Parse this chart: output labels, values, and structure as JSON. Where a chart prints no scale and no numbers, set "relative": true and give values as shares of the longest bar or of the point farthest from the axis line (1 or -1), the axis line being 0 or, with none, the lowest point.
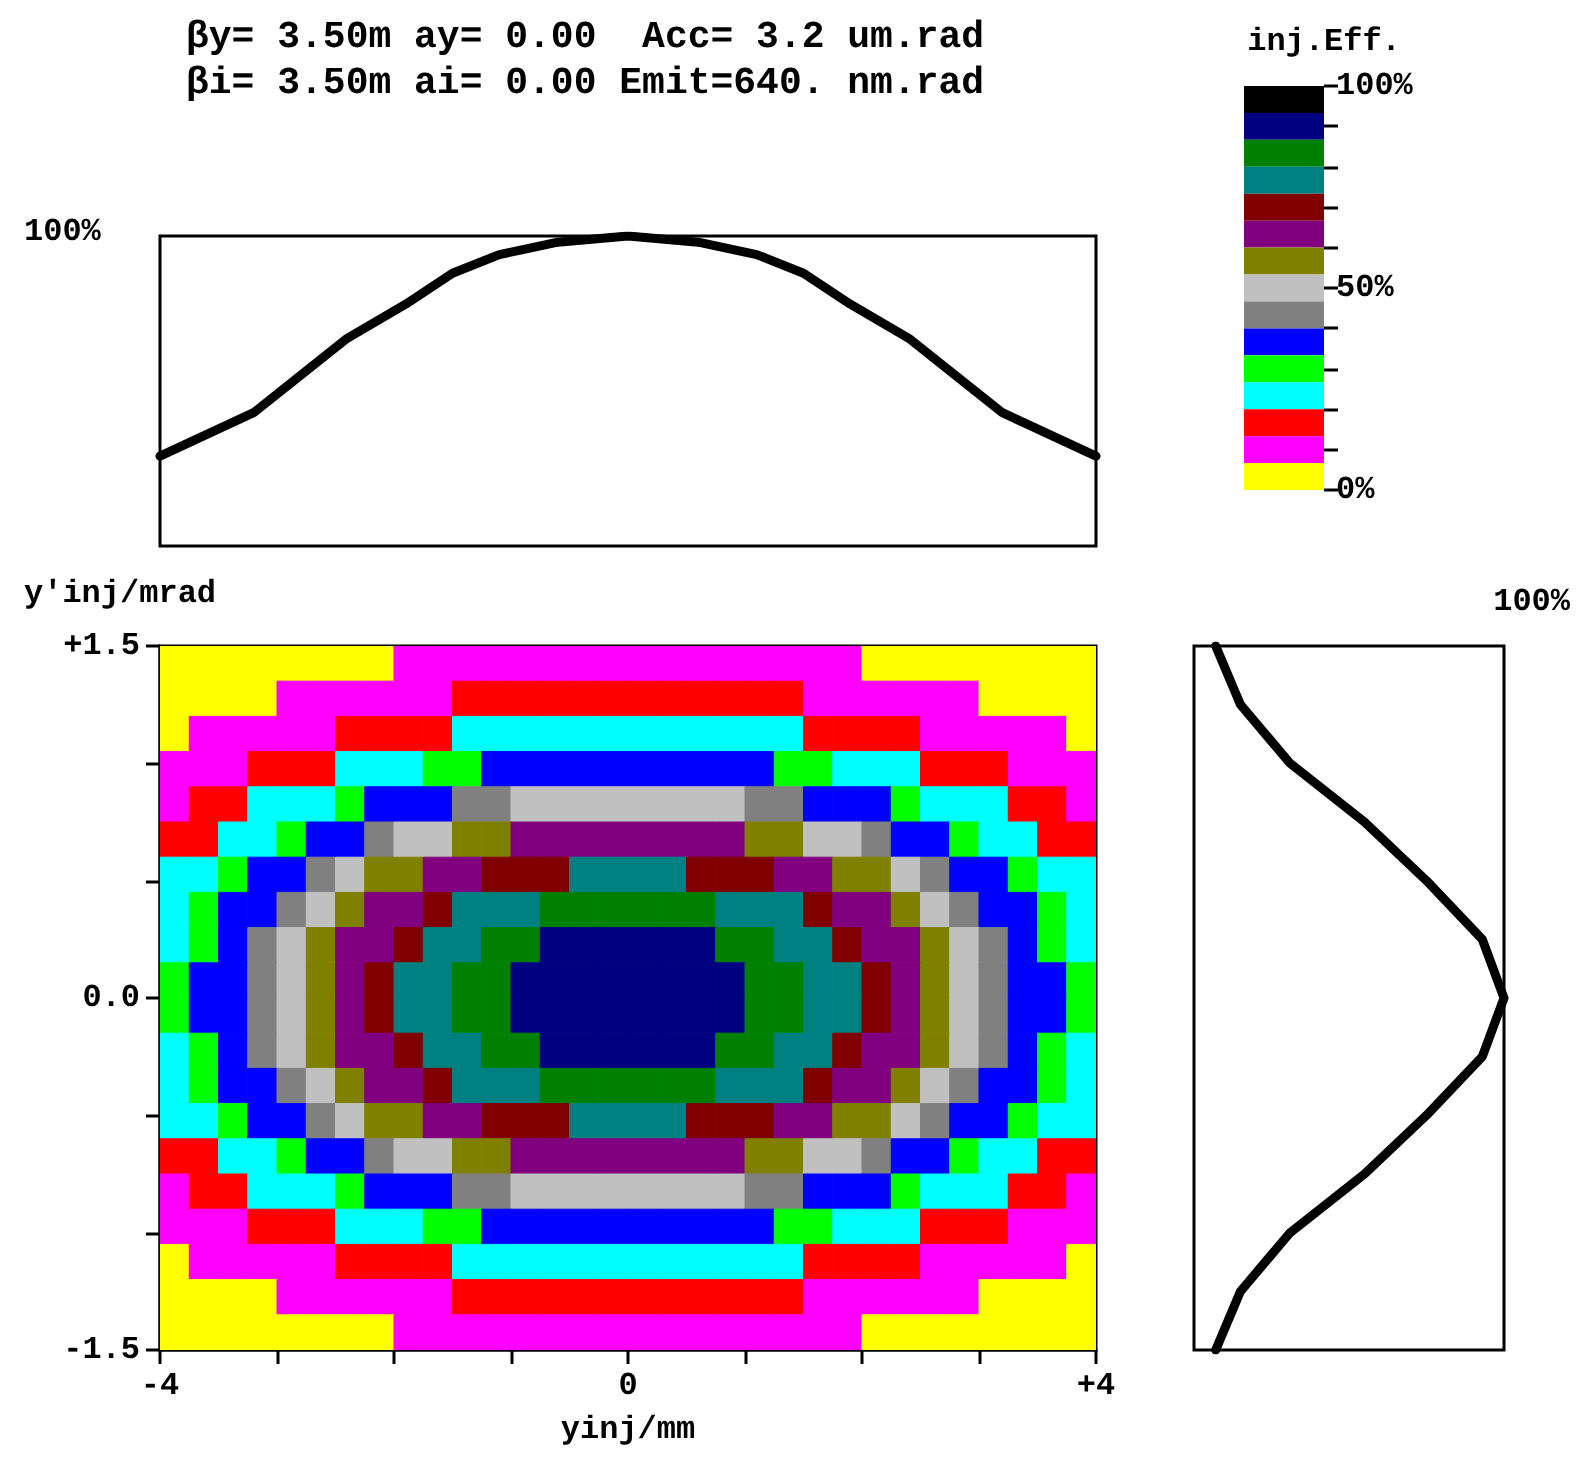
{
  "chart_data": [
    {
      "type": "line",
      "title": "βy= 3.50m ay= 0.00  Acc= 3.2 um.rad",
      "subtitle": "βi= 3.50m ai= 0.00 Emit=640. nm.rad",
      "relative": true,
      "xlim": [
        -4,
        4
      ],
      "tick_labels": false,
      "annotations": [
        "100%"
      ],
      "series": [
        {
          "color": "#000000",
          "x": [
            -4,
            -3.2,
            -2.8,
            -2.4,
            -1.9,
            -1.5,
            -1.1,
            -0.6,
            0,
            0.6,
            1.1,
            1.5,
            1.9,
            2.4,
            2.8,
            3.2,
            4
          ],
          "values": [
            0.29,
            0.43,
            0.55,
            0.67,
            0.78,
            0.88,
            0.94,
            0.98,
            1,
            0.98,
            0.94,
            0.88,
            0.78,
            0.67,
            0.55,
            0.43,
            0.29
          ]
        }
      ]
    },
    {
      "type": "heatmap",
      "xlabel": "yinj/mm",
      "ylabel": "y'inj/mrad",
      "clabel": "inj.Eff.",
      "x": [
        -3.875,
        -3.625,
        -3.375,
        -3.125,
        -2.875,
        -2.625,
        -2.375,
        -2.125,
        -1.875,
        -1.625,
        -1.375,
        -1.125,
        -0.875,
        -0.625,
        -0.375,
        -0.125,
        0.125,
        0.375,
        0.625,
        0.875,
        1.125,
        1.375,
        1.625,
        1.875,
        2.125,
        2.375,
        2.625,
        2.875,
        3.125,
        3.375,
        3.625,
        3.875
      ],
      "y": [
        1.425,
        1.275,
        1.125,
        0.975,
        0.825,
        0.675,
        0.525,
        0.375,
        0.225,
        0.075,
        -0.075,
        -0.225,
        -0.375,
        -0.525,
        -0.675,
        -0.825,
        -0.975,
        -1.125,
        -1.275,
        -1.425
      ],
      "xlim": [
        -4,
        4
      ],
      "xticks": [
        -4,
        {
          "value": -3,
          "label": null
        },
        {
          "value": -2,
          "label": null
        },
        {
          "value": -1,
          "label": null
        },
        0,
        {
          "value": 1,
          "label": null
        },
        {
          "value": 2,
          "label": null
        },
        {
          "value": 3,
          "label": null
        },
        {
          "value": 4,
          "label": "+4"
        }
      ],
      "ylim": [
        -1.5,
        1.5
      ],
      "yticks": [
        -1.5,
        {
          "value": -1,
          "label": null
        },
        {
          "value": -0.5,
          "label": null
        },
        {
          "value": 0,
          "label": "0.0"
        },
        {
          "value": 0.5,
          "label": null
        },
        {
          "value": 1,
          "label": null
        },
        {
          "value": 1.5,
          "label": "+1.5"
        }
      ],
      "clim": [
        0,
        100
      ],
      "cticks": [
        {
          "value": 0,
          "label": "0%"
        },
        {
          "value": 10,
          "label": null
        },
        {
          "value": 20,
          "label": null
        },
        {
          "value": 30,
          "label": null
        },
        {
          "value": 40,
          "label": null
        },
        {
          "value": 50,
          "label": "50%"
        },
        {
          "value": 60,
          "label": null
        },
        {
          "value": 70,
          "label": null
        },
        {
          "value": 80,
          "label": null
        },
        {
          "value": 90,
          "label": null
        },
        {
          "value": 100,
          "label": "100%"
        }
      ],
      "colors": [
        "#ffff00",
        "#ff00ff",
        "#ff0000",
        "#00ffff",
        "#00ff00",
        "#0000ff",
        "#808080",
        "#c0c0c0",
        "#808000",
        "#800080",
        "#800000",
        "#008080",
        "#008000",
        "#000080",
        "#000000"
      ],
      "cells": [
        [
          3,
          3,
          3,
          3,
          3,
          3,
          3,
          3,
          10,
          10,
          10,
          10,
          10,
          10,
          10,
          10,
          10,
          10,
          10,
          10,
          10,
          10,
          10,
          10,
          3,
          3,
          3,
          3,
          3,
          3,
          3,
          3
        ],
        [
          3,
          3,
          3,
          3,
          10,
          10,
          10,
          10,
          10,
          10,
          17,
          17,
          17,
          17,
          17,
          17,
          17,
          17,
          17,
          17,
          17,
          17,
          10,
          10,
          10,
          10,
          10,
          10,
          3,
          3,
          3,
          3
        ],
        [
          3,
          10,
          10,
          10,
          10,
          10,
          17,
          17,
          17,
          17,
          23,
          23,
          23,
          23,
          23,
          23,
          23,
          23,
          23,
          23,
          23,
          23,
          17,
          17,
          17,
          17,
          10,
          10,
          10,
          10,
          10,
          3
        ],
        [
          10,
          10,
          10,
          17,
          17,
          17,
          23,
          23,
          23,
          30,
          30,
          37,
          37,
          37,
          37,
          37,
          37,
          37,
          37,
          37,
          37,
          30,
          30,
          23,
          23,
          23,
          17,
          17,
          17,
          10,
          10,
          10
        ],
        [
          10,
          17,
          17,
          23,
          23,
          23,
          30,
          37,
          37,
          37,
          43,
          43,
          50,
          50,
          50,
          50,
          50,
          50,
          50,
          50,
          43,
          43,
          37,
          37,
          37,
          30,
          23,
          23,
          23,
          17,
          17,
          10
        ],
        [
          17,
          17,
          23,
          23,
          30,
          37,
          37,
          43,
          50,
          50,
          57,
          57,
          63,
          63,
          63,
          63,
          63,
          63,
          63,
          63,
          57,
          57,
          50,
          50,
          43,
          37,
          37,
          30,
          23,
          23,
          17,
          17
        ],
        [
          23,
          23,
          30,
          37,
          37,
          43,
          50,
          57,
          57,
          63,
          63,
          70,
          70,
          70,
          77,
          77,
          77,
          77,
          70,
          70,
          70,
          63,
          63,
          57,
          57,
          50,
          43,
          37,
          37,
          30,
          23,
          23
        ],
        [
          23,
          30,
          37,
          37,
          43,
          50,
          57,
          63,
          63,
          70,
          77,
          77,
          77,
          83,
          83,
          83,
          83,
          83,
          83,
          77,
          77,
          77,
          70,
          63,
          63,
          57,
          50,
          43,
          37,
          37,
          30,
          23
        ],
        [
          23,
          30,
          37,
          43,
          50,
          57,
          63,
          63,
          70,
          77,
          77,
          83,
          83,
          90,
          90,
          90,
          90,
          90,
          90,
          83,
          83,
          77,
          77,
          70,
          63,
          63,
          57,
          50,
          43,
          37,
          30,
          23
        ],
        [
          30,
          37,
          37,
          43,
          50,
          57,
          63,
          70,
          77,
          77,
          83,
          83,
          90,
          90,
          90,
          90,
          90,
          90,
          90,
          90,
          83,
          83,
          77,
          77,
          70,
          63,
          57,
          50,
          43,
          37,
          37,
          30
        ],
        [
          30,
          37,
          37,
          43,
          50,
          57,
          63,
          70,
          77,
          77,
          83,
          83,
          90,
          90,
          90,
          90,
          90,
          90,
          90,
          90,
          83,
          83,
          77,
          77,
          70,
          63,
          57,
          50,
          43,
          37,
          37,
          30
        ],
        [
          23,
          30,
          37,
          43,
          50,
          57,
          63,
          63,
          70,
          77,
          77,
          83,
          83,
          90,
          90,
          90,
          90,
          90,
          90,
          83,
          83,
          77,
          77,
          70,
          63,
          63,
          57,
          50,
          43,
          37,
          30,
          23
        ],
        [
          23,
          30,
          37,
          37,
          43,
          50,
          57,
          63,
          63,
          70,
          77,
          77,
          77,
          83,
          83,
          83,
          83,
          83,
          83,
          77,
          77,
          77,
          70,
          63,
          63,
          57,
          50,
          43,
          37,
          37,
          30,
          23
        ],
        [
          23,
          23,
          30,
          37,
          37,
          43,
          50,
          57,
          57,
          63,
          63,
          70,
          70,
          70,
          77,
          77,
          77,
          77,
          70,
          70,
          70,
          63,
          63,
          57,
          57,
          50,
          43,
          37,
          37,
          30,
          23,
          23
        ],
        [
          17,
          17,
          23,
          23,
          30,
          37,
          37,
          43,
          50,
          50,
          57,
          57,
          63,
          63,
          63,
          63,
          63,
          63,
          63,
          63,
          57,
          57,
          50,
          50,
          43,
          37,
          37,
          30,
          23,
          23,
          17,
          17
        ],
        [
          10,
          17,
          17,
          23,
          23,
          23,
          30,
          37,
          37,
          37,
          43,
          43,
          50,
          50,
          50,
          50,
          50,
          50,
          50,
          50,
          43,
          43,
          37,
          37,
          37,
          30,
          23,
          23,
          23,
          17,
          17,
          10
        ],
        [
          10,
          10,
          10,
          17,
          17,
          17,
          23,
          23,
          23,
          30,
          30,
          37,
          37,
          37,
          37,
          37,
          37,
          37,
          37,
          37,
          37,
          30,
          30,
          23,
          23,
          23,
          17,
          17,
          17,
          10,
          10,
          10
        ],
        [
          3,
          10,
          10,
          10,
          10,
          10,
          17,
          17,
          17,
          17,
          23,
          23,
          23,
          23,
          23,
          23,
          23,
          23,
          23,
          23,
          23,
          23,
          17,
          17,
          17,
          17,
          10,
          10,
          10,
          10,
          10,
          3
        ],
        [
          3,
          3,
          3,
          3,
          10,
          10,
          10,
          10,
          10,
          10,
          17,
          17,
          17,
          17,
          17,
          17,
          17,
          17,
          17,
          17,
          17,
          17,
          10,
          10,
          10,
          10,
          10,
          10,
          3,
          3,
          3,
          3
        ],
        [
          3,
          3,
          3,
          3,
          3,
          3,
          3,
          3,
          10,
          10,
          10,
          10,
          10,
          10,
          10,
          10,
          10,
          10,
          10,
          10,
          10,
          10,
          10,
          10,
          3,
          3,
          3,
          3,
          3,
          3,
          3,
          3
        ]
      ]
    },
    {
      "type": "line",
      "orientation": "horizontal",
      "relative": true,
      "ylim": [
        -1.5,
        1.5
      ],
      "tick_labels": false,
      "annotations": [
        "100%"
      ],
      "series": [
        {
          "color": "#000000",
          "x": [
            -1.5,
            -1.25,
            -1,
            -0.75,
            -0.5,
            -0.25,
            0,
            0.25,
            0.5,
            0.75,
            1,
            1.25,
            1.5
          ],
          "values": [
            0.07,
            0.15,
            0.31,
            0.55,
            0.75,
            0.93,
            1,
            0.93,
            0.75,
            0.55,
            0.31,
            0.15,
            0.07
          ]
        }
      ]
    }
  ]
}
